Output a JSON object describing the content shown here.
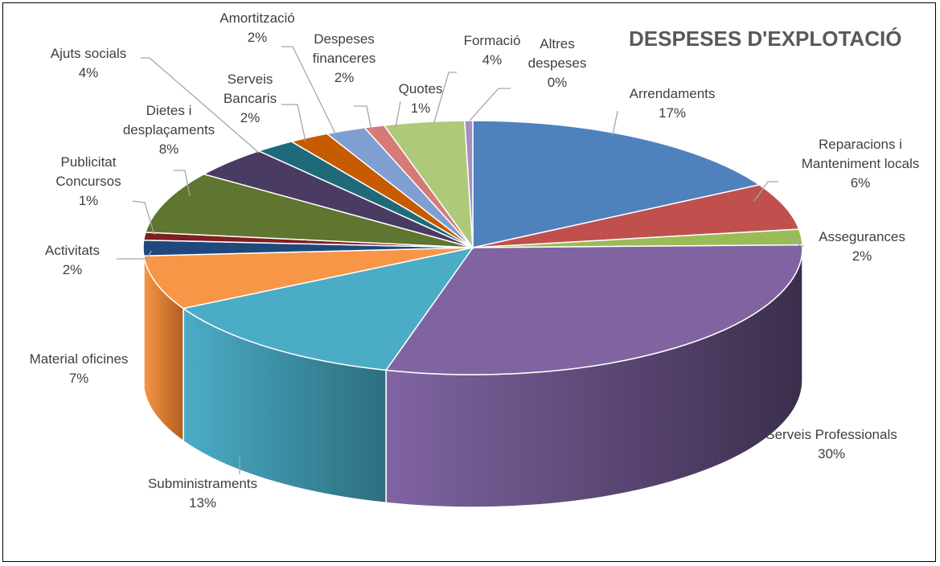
{
  "chart_data": {
    "type": "pie",
    "variant": "3d",
    "title": "DESPESES D'EXPLOTACIÓ",
    "start_angle_deg": 0,
    "direction": "clockwise",
    "slices": [
      {
        "name": "Arrendaments",
        "value": 17,
        "label_lines": [
          "Arrendaments",
          "17%"
        ],
        "color": "#4f81bd",
        "dark": "#2c4d75"
      },
      {
        "name": "Reparacions i Manteniment locals",
        "value": 6,
        "label_lines": [
          "Reparacions i",
          "Manteniment locals",
          "6%"
        ],
        "color": "#c0504d",
        "dark": "#7a2d2b"
      },
      {
        "name": "Assegurances",
        "value": 2,
        "label_lines": [
          "Assegurances",
          "2%"
        ],
        "color": "#9bbb59",
        "dark": "#5e7532"
      },
      {
        "name": "Serveis Professionals",
        "value": 30,
        "label_lines": [
          "Serveis Professionals",
          "30%"
        ],
        "color": "#8064a2",
        "dark": "#3b2e4c"
      },
      {
        "name": "Subministraments",
        "value": 13,
        "label_lines": [
          "Subministraments",
          "13%"
        ],
        "color": "#4bacc6",
        "dark": "#2d6e80"
      },
      {
        "name": "Material oficines",
        "value": 7,
        "label_lines": [
          "Material oficines",
          "7%"
        ],
        "color": "#f79646",
        "dark": "#b05f1f"
      },
      {
        "name": "Activitats",
        "value": 2,
        "label_lines": [
          "Activitats",
          "2%"
        ],
        "color": "#1f497d",
        "dark": "#10273f"
      },
      {
        "name": "Publicitat Concursos",
        "value": 1,
        "label_lines": [
          "Publicitat",
          "Concursos",
          "1%"
        ],
        "color": "#7f1f1f",
        "dark": "#4a1010"
      },
      {
        "name": "Dietes i desplaçaments",
        "value": 8,
        "label_lines": [
          "Dietes i",
          "desplaçaments",
          "8%"
        ],
        "color": "#5f7530",
        "dark": "#37451b"
      },
      {
        "name": "Ajuts socials",
        "value": 4,
        "label_lines": [
          "Ajuts socials",
          "4%"
        ],
        "color": "#4a3b62",
        "dark": "#2a2138"
      },
      {
        "name": "Serveis Bancaris",
        "value": 2,
        "label_lines": [
          "Serveis",
          "Bancaris",
          "2%"
        ],
        "color": "#1f6a7a",
        "dark": "#113c45"
      },
      {
        "name": "Amortització",
        "value": 2,
        "label_lines": [
          "Amortització",
          "2%"
        ],
        "color": "#c65b00",
        "dark": "#7a3800"
      },
      {
        "name": "Despeses financeres",
        "value": 2,
        "label_lines": [
          "Despeses",
          "financeres",
          "2%"
        ],
        "color": "#7f9fd3",
        "dark": "#4d6290"
      },
      {
        "name": "Quotes",
        "value": 1,
        "label_lines": [
          "Quotes",
          "1%"
        ],
        "color": "#d67a78",
        "dark": "#8a4a49"
      },
      {
        "name": "Formació",
        "value": 4,
        "label_lines": [
          "Formació",
          "4%"
        ],
        "color": "#afc97a",
        "dark": "#6e8245"
      },
      {
        "name": "Altres despeses",
        "value": 0.4,
        "label_lines": [
          "Altres",
          "despeses",
          "0%"
        ],
        "color": "#a58fc0",
        "dark": "#64557a"
      }
    ]
  }
}
